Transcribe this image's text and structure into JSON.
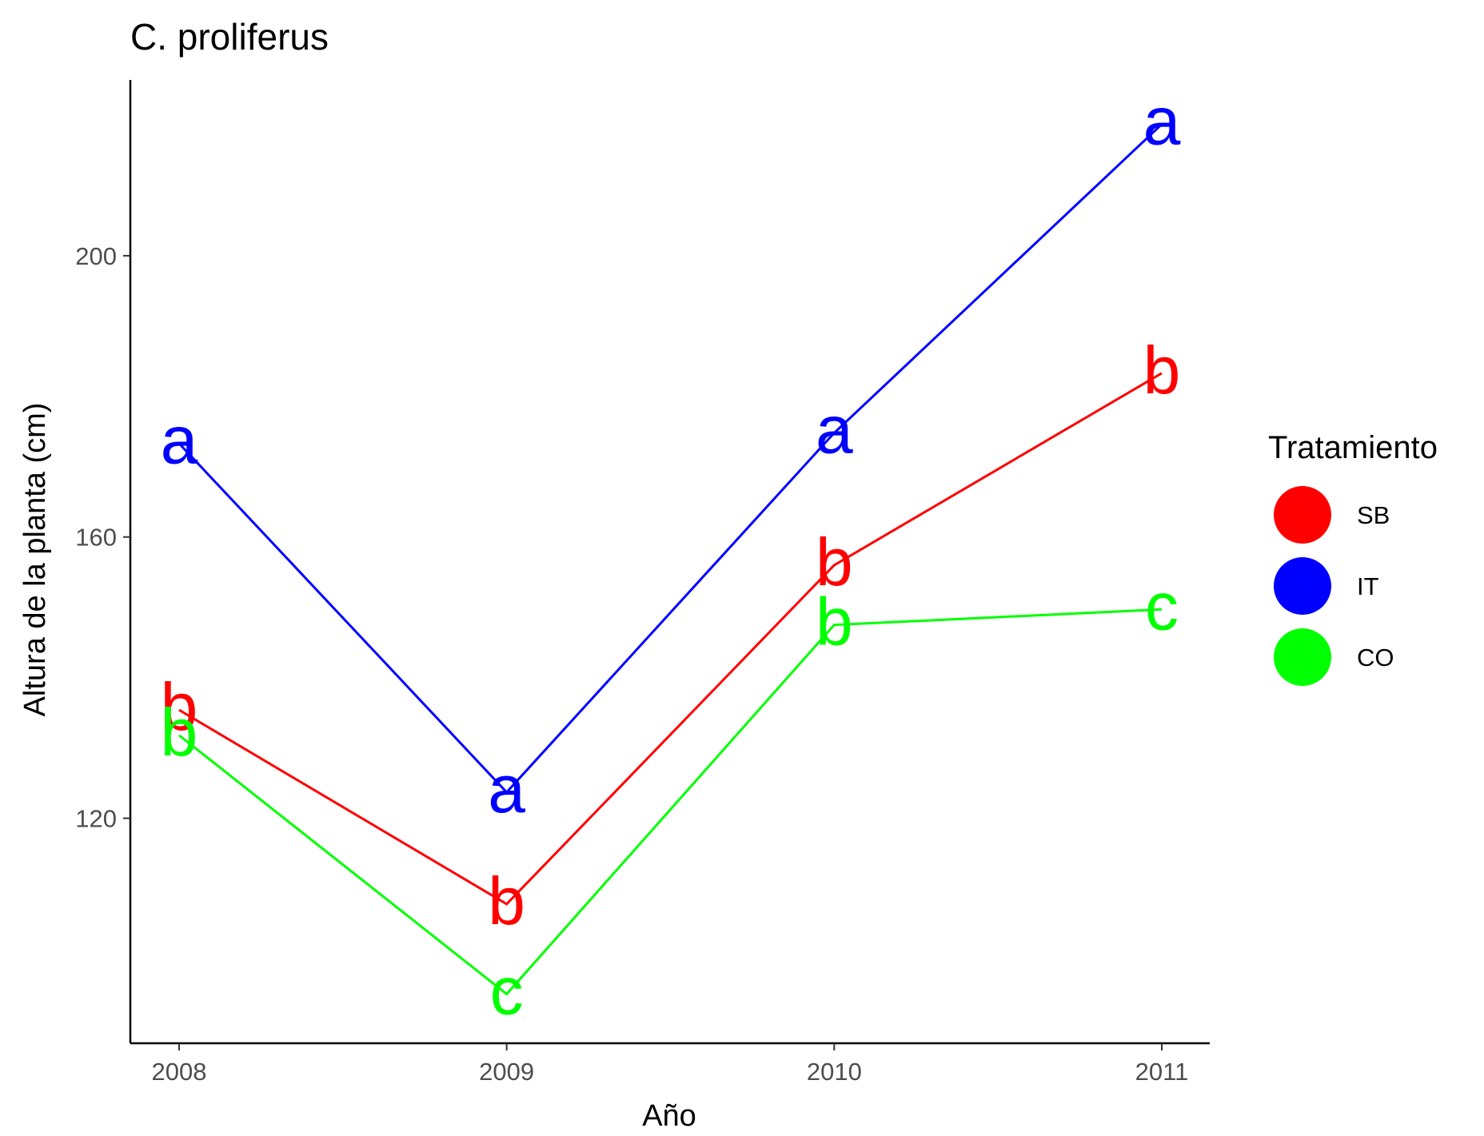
{
  "chart_data": {
    "type": "line",
    "title": "C. proliferus",
    "xlabel": "Año",
    "ylabel": "Altura de la planta (cm)",
    "categories": [
      "2008",
      "2009",
      "2010",
      "2011"
    ],
    "y_ticks": [
      120,
      160,
      200
    ],
    "ylim": [
      88,
      225
    ],
    "grid": false,
    "legend": {
      "title": "Tratamiento",
      "position": "right"
    },
    "series": [
      {
        "name": "SB",
        "color": "#FF0000",
        "values": [
          135.4,
          107.8,
          156.0,
          183.3
        ],
        "labels": [
          "b",
          "b",
          "b",
          "b"
        ]
      },
      {
        "name": "IT",
        "color": "#0000FF",
        "values": [
          173.3,
          123.7,
          174.8,
          218.7
        ],
        "labels": [
          "a",
          "a",
          "a",
          "a"
        ]
      },
      {
        "name": "CO",
        "color": "#00FF00",
        "values": [
          131.8,
          95.0,
          147.5,
          149.7
        ],
        "labels": [
          "b",
          "c",
          "b",
          "c"
        ]
      }
    ]
  }
}
